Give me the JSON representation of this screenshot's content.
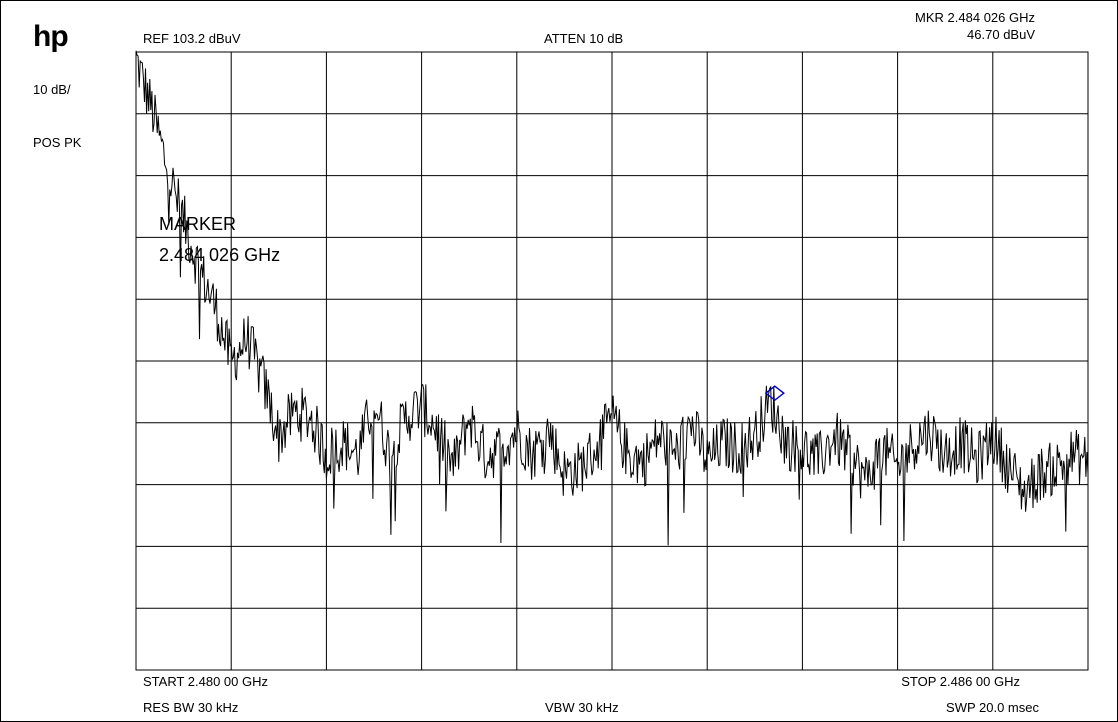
{
  "instrument": {
    "logo": "hp",
    "scale": "10 dB/",
    "detector": "POS PK",
    "ref_level": "REF  103.2 dBuV",
    "attenuation": "ATTEN 10 dB",
    "marker_freq_readout": "MKR 2.484 026 GHz",
    "marker_level_readout": "46.70 dBuV",
    "marker_label": "MARKER",
    "marker_freq_label": "2.484 026 GHz",
    "start": "START 2.480 00 GHz",
    "stop": "STOP 2.486 00 GHz",
    "res_bw": "RES BW 30 kHz",
    "vbw": "VBW 30 kHz",
    "sweep": "SWP 20.0 msec"
  },
  "chart_data": {
    "type": "line",
    "x_unit": "GHz",
    "y_unit": "dBuV",
    "xlim": [
      2.48,
      2.486
    ],
    "ylim": [
      3.2,
      103.2
    ],
    "grid": true,
    "trace_color": "#000000",
    "marker_color": "#0000cc",
    "series": [
      {
        "x": [
          2.48,
          2.4801,
          2.4802,
          2.4803,
          2.4804,
          2.4805,
          2.4806,
          2.4807,
          2.4808,
          2.4809,
          2.481,
          2.4811,
          2.4812,
          2.4813,
          2.4814,
          2.4815,
          2.4816,
          2.4817,
          2.4818,
          2.4819,
          2.482,
          2.4821,
          2.4822,
          2.4823,
          2.4824,
          2.4825,
          2.4826,
          2.4827,
          2.4828,
          2.4829,
          2.483,
          2.4831,
          2.4832,
          2.4833,
          2.4834,
          2.4835,
          2.4836,
          2.4837,
          2.4838,
          2.4839,
          2.484,
          2.4841,
          2.4842,
          2.4843,
          2.4844,
          2.4845,
          2.4846,
          2.4847,
          2.4848,
          2.4849,
          2.485,
          2.4851,
          2.4852,
          2.4853,
          2.4854,
          2.4855,
          2.4856,
          2.4857,
          2.4858,
          2.4859,
          2.486
        ],
        "y": [
          102,
          94,
          84,
          76,
          68,
          62,
          53,
          57,
          50,
          41,
          45,
          44,
          38,
          40,
          38,
          47,
          38,
          44,
          46,
          42,
          36,
          44,
          38,
          39,
          42,
          38,
          42,
          35,
          36,
          39,
          44,
          38,
          37,
          41,
          38,
          43,
          37,
          40,
          39,
          41,
          46.7,
          40,
          39,
          37,
          41,
          38,
          34,
          39,
          36,
          40,
          42,
          38,
          40,
          37,
          41,
          36,
          32,
          35,
          36,
          38,
          37
        ]
      }
    ],
    "marker": {
      "x": 2.484026,
      "y": 46.7
    }
  }
}
